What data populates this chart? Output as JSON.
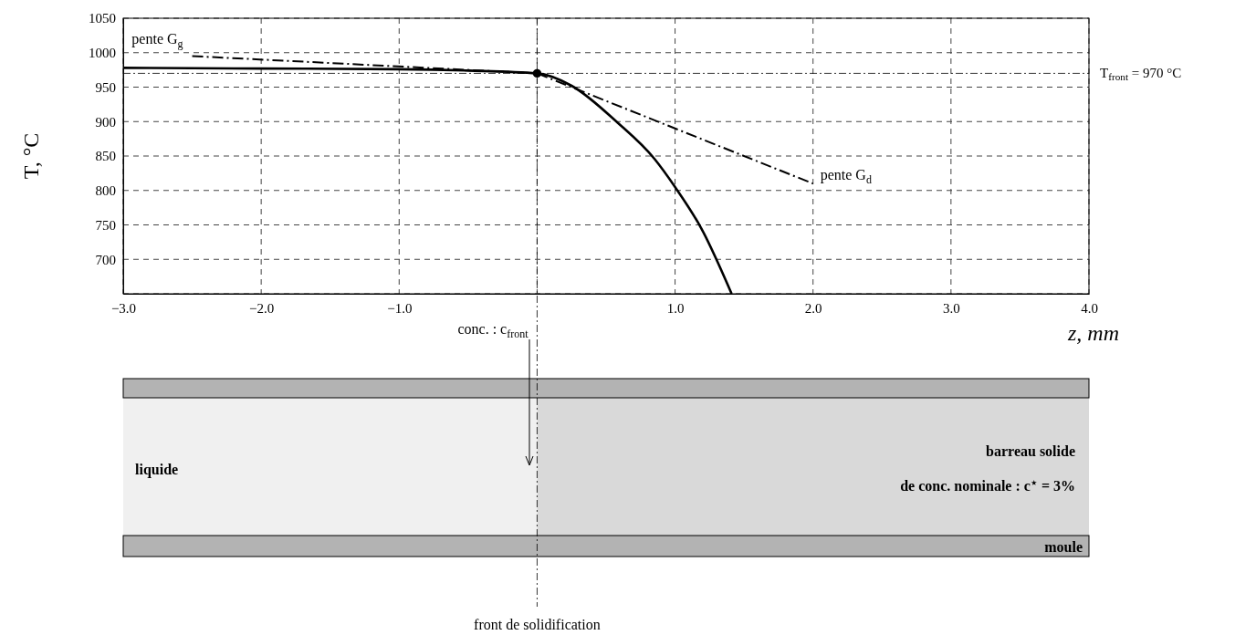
{
  "chart_data": {
    "type": "line",
    "xlabel": "z, mm",
    "ylabel": "T, °C",
    "xlim": [
      -3,
      4
    ],
    "ylim": [
      650,
      1050
    ],
    "xticks": [
      {
        "value": -3,
        "label": "−3.0"
      },
      {
        "value": -2,
        "label": "−2.0"
      },
      {
        "value": -1,
        "label": "−1.0"
      },
      {
        "value": 0,
        "label": null
      },
      {
        "value": 1,
        "label": "1.0"
      },
      {
        "value": 2,
        "label": "2.0"
      },
      {
        "value": 3,
        "label": "3.0"
      },
      {
        "value": 4,
        "label": "4.0"
      }
    ],
    "yticks": [
      {
        "value": 650,
        "label": null
      },
      700,
      750,
      800,
      850,
      900,
      950,
      1000,
      1050
    ],
    "grid": true,
    "series": [
      {
        "color": "#000000",
        "line_style": "solid",
        "x": [
          -3,
          -2,
          -1,
          -0.5,
          0,
          0.25,
          0.58,
          0.85,
          1.0,
          1.19,
          1.41
        ],
        "values": [
          978,
          977,
          976,
          974,
          970,
          952,
          899,
          846,
          805,
          745,
          650
        ]
      },
      {
        "name": "pente G$_{g}$",
        "color": "#000000",
        "line_style": "dashed",
        "x": [
          -2.5,
          0
        ],
        "values": [
          995,
          970
        ]
      },
      {
        "name": "pente G$_{d}$",
        "color": "#000000",
        "line_style": "dashed",
        "x": [
          0,
          2
        ],
        "values": [
          970,
          810
        ]
      },
      {
        "type": "scatter",
        "marker": "circle",
        "color": "#000000",
        "x": [
          0
        ],
        "values": [
          970
        ]
      }
    ],
    "ref_lines": [
      {
        "axis": "y",
        "value": 970,
        "label": "T$_{front}$ = 970 °C",
        "line_style": "dashed"
      },
      {
        "axis": "x",
        "value": 0,
        "label": "front de solidification",
        "line_style": "dashed"
      }
    ],
    "annotations": [
      "conc. : c$_{front}$",
      "liquide",
      "barreau solide",
      "de conc. nominale : c$^{⋆}$ = 3%",
      "moule"
    ]
  }
}
